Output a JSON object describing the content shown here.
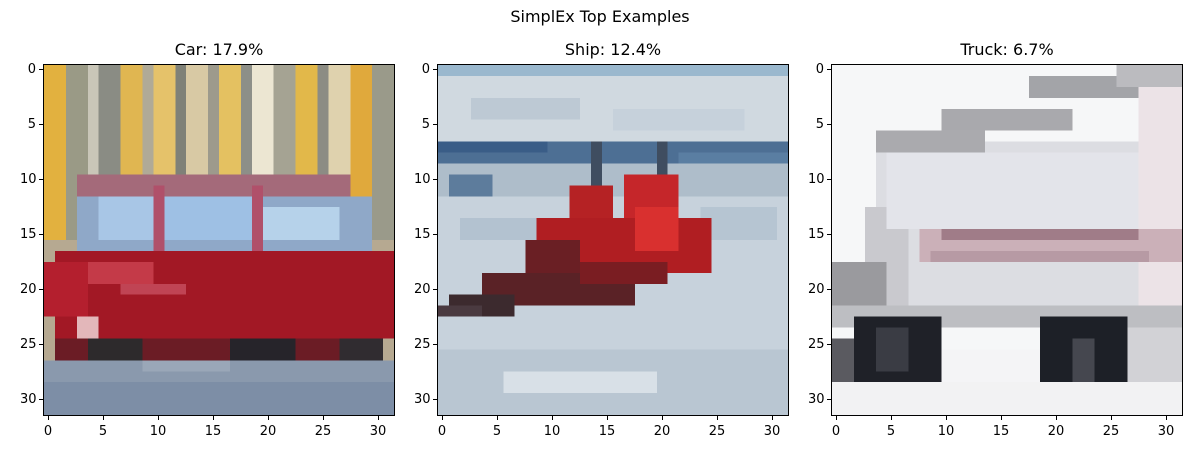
{
  "figure": {
    "title": "SimplEx Top Examples"
  },
  "panels": [
    {
      "id": "car",
      "title": "Car: 17.9%",
      "label": "Car",
      "percent": 17.9,
      "image_subject": "red station wagon car"
    },
    {
      "id": "ship",
      "title": "Ship: 12.4%",
      "label": "Ship",
      "percent": 12.4,
      "image_subject": "red boat on icy water"
    },
    {
      "id": "truck",
      "title": "Truck: 6.7%",
      "label": "Truck",
      "percent": 6.7,
      "image_subject": "white truck trailer"
    }
  ],
  "axes": {
    "xticks": [
      "0",
      "5",
      "10",
      "15",
      "20",
      "25",
      "30"
    ],
    "yticks": [
      "0",
      "5",
      "10",
      "15",
      "20",
      "25",
      "30"
    ],
    "tick_values": [
      0,
      5,
      10,
      15,
      20,
      25,
      30
    ],
    "pixel_grid": 32
  }
}
